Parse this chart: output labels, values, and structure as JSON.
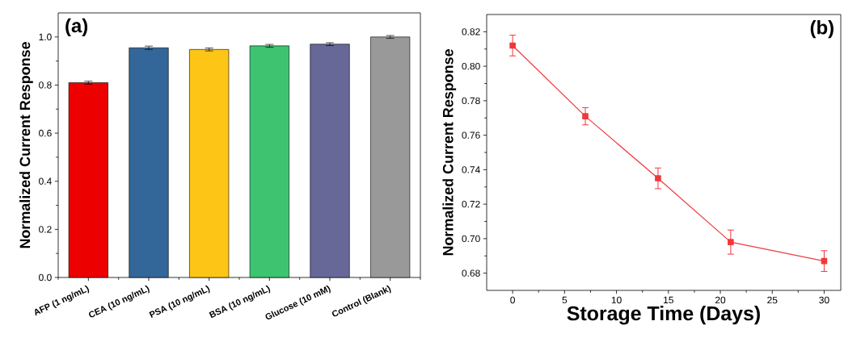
{
  "chart_data": [
    {
      "type": "bar",
      "ylabel": "Normalized Current Response",
      "annotations": [
        "(a)"
      ],
      "categories": [
        "AFP (1 ng/mL)",
        "CEA (10 ng/mL)",
        "PSA (10 ng/mL)",
        "BSA (10 ng/mL)",
        "Glucose (10 mM)",
        "Control (Blank)"
      ],
      "values": [
        0.81,
        0.955,
        0.948,
        0.963,
        0.97,
        1.0
      ],
      "errors": [
        0.006,
        0.007,
        0.006,
        0.006,
        0.006,
        0.006
      ],
      "colors": [
        "#ec0000",
        "#336699",
        "#fdc516",
        "#3ec371",
        "#676898",
        "#999999"
      ],
      "ylim": [
        0,
        1.1
      ],
      "yticks": [
        {
          "value": 0,
          "label": "0.0"
        },
        {
          "value": 0.2,
          "label": "0.2"
        },
        {
          "value": 0.4,
          "label": "0.4"
        },
        {
          "value": 0.6,
          "label": "0.6"
        },
        {
          "value": 0.8,
          "label": "0.8"
        },
        {
          "value": 1.0,
          "label": "1.0"
        }
      ]
    },
    {
      "type": "line",
      "ylabel": "Normalized Current Response",
      "xlabel": "Storage Time (Days)",
      "annotations": [
        "(b)"
      ],
      "x": [
        0,
        7,
        14,
        21,
        30
      ],
      "values": [
        0.812,
        0.771,
        0.735,
        0.698,
        0.687
      ],
      "errors": [
        0.006,
        0.005,
        0.006,
        0.007,
        0.006
      ],
      "color": "#f0383b",
      "marker": "square",
      "line_style": "solid",
      "xlim": [
        -2.5,
        31.6
      ],
      "xticks": [
        0,
        5,
        10,
        15,
        20,
        25,
        30
      ],
      "ylim": [
        0.67,
        0.83
      ],
      "yticks": [
        {
          "value": 0.68,
          "label": "0.68"
        },
        {
          "value": 0.7,
          "label": "0.70"
        },
        {
          "value": 0.72,
          "label": "0.72"
        },
        {
          "value": 0.74,
          "label": "0.74"
        },
        {
          "value": 0.76,
          "label": "0.76"
        },
        {
          "value": 0.78,
          "label": "0.78"
        },
        {
          "value": 0.8,
          "label": "0.80"
        },
        {
          "value": 0.82,
          "label": "0.82"
        }
      ]
    }
  ]
}
